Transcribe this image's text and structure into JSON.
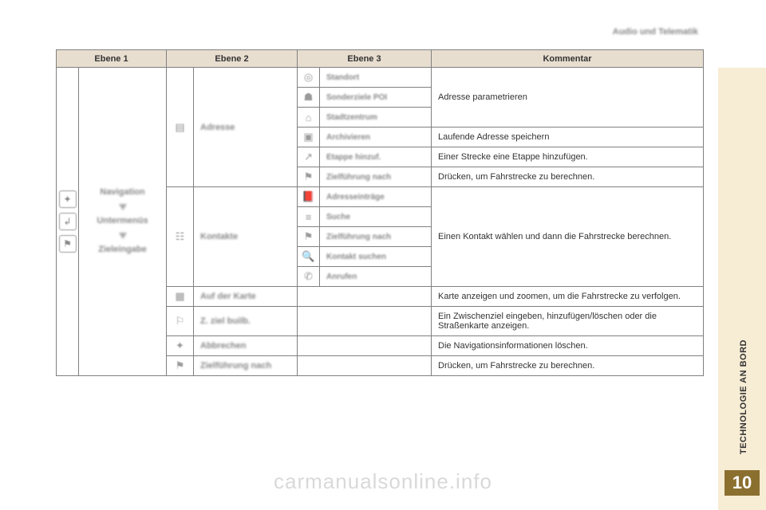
{
  "header": {
    "section_title": "Audio und Telematik"
  },
  "sidebar": {
    "vertical_label": "TECHNOLOGIE AN BORD",
    "chapter_number": "10"
  },
  "watermark": "carmanualsonline.info",
  "colors": {
    "header_bg": "#e8ded0",
    "border": "#808080",
    "right_panel": "#f7ecd4",
    "chapter_tab": "#8a6f2f",
    "blur_text": "#888888",
    "body_text": "#333333",
    "watermark": "#d9d9d9"
  },
  "table": {
    "headers": {
      "c1": "Ebene 1",
      "c2": "Ebene 2",
      "c3": "Ebene 3",
      "c4": "Kommentar"
    },
    "level1": {
      "line1": "Navigation",
      "line2": "Untermenüs",
      "line3": "Zieleingabe"
    },
    "groups": [
      {
        "l2_label": "Adresse",
        "rows": [
          {
            "l3": "Standort",
            "comment_rowspan_text": "Adresse parametrieren"
          },
          {
            "l3": "Sonderziele POI"
          },
          {
            "l3": "Stadtzentrum"
          },
          {
            "l3": "Archivieren",
            "comment": "Laufende Adresse speichern"
          },
          {
            "l3": "Etappe hinzuf.",
            "comment": "Einer Strecke eine Etappe hinzufügen."
          },
          {
            "l3": "Zielführung nach",
            "comment": "Drücken, um Fahrstrecke zu berechnen."
          }
        ]
      },
      {
        "l2_label": "Kontakte",
        "rows": [
          {
            "l3": "Adresseinträge",
            "comment_rowspan_text": "Einen Kontakt wählen und dann die Fahrstrecke berechnen."
          },
          {
            "l3": "Suche"
          },
          {
            "l3": "Zielführung nach"
          },
          {
            "l3": "Kontakt suchen"
          },
          {
            "l3": "Anrufen"
          }
        ]
      },
      {
        "l2_label": "Auf der Karte",
        "rows": [
          {
            "l3": "",
            "comment": "Karte anzeigen und zoomen, um die Fahrstrecke zu verfolgen."
          }
        ]
      },
      {
        "l2_label": "Z. ziel builb.",
        "rows": [
          {
            "l3": "",
            "comment": "Ein Zwischenziel eingeben, hinzufügen/löschen oder die Straßenkarte anzeigen."
          }
        ]
      },
      {
        "l2_label": "Abbrechen",
        "rows": [
          {
            "l3": "",
            "comment": "Die Navigationsinformationen löschen."
          }
        ]
      },
      {
        "l2_label": "Zielführung nach",
        "rows": [
          {
            "l3": "",
            "comment": "Drücken, um Fahrstrecke zu berechnen."
          }
        ]
      }
    ]
  }
}
